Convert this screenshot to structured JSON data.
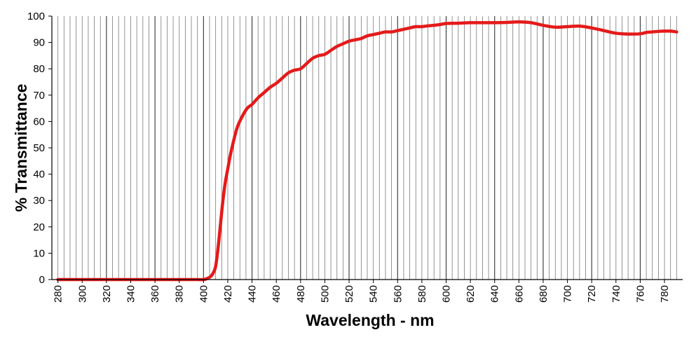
{
  "chart_data": {
    "type": "line",
    "title": "",
    "xlabel": "Wavelength - nm",
    "ylabel": "% Transmittance",
    "xlim": [
      275,
      795
    ],
    "ylim": [
      0,
      100
    ],
    "x_ticks": [
      280,
      300,
      320,
      340,
      360,
      380,
      400,
      420,
      440,
      460,
      480,
      500,
      520,
      540,
      560,
      580,
      600,
      620,
      640,
      660,
      680,
      700,
      720,
      740,
      760,
      780
    ],
    "y_ticks": [
      0,
      10,
      20,
      30,
      40,
      50,
      60,
      70,
      80,
      90,
      100
    ],
    "grid": "vertical lines every 5 nm, darker every 40 nm",
    "legend": "none",
    "series": [
      {
        "color": "#e51a1a",
        "x": [
          280,
          300,
          320,
          340,
          360,
          380,
          392,
          400,
          403,
          406,
          408,
          410,
          412,
          414,
          416,
          418,
          420,
          422,
          425,
          428,
          432,
          436,
          440,
          445,
          450,
          455,
          460,
          465,
          470,
          475,
          480,
          485,
          490,
          495,
          500,
          505,
          510,
          515,
          520,
          525,
          530,
          535,
          540,
          545,
          550,
          555,
          560,
          565,
          570,
          575,
          580,
          585,
          590,
          595,
          600,
          610,
          620,
          630,
          640,
          650,
          660,
          670,
          680,
          690,
          700,
          710,
          720,
          730,
          740,
          750,
          760,
          765,
          770,
          775,
          780,
          785,
          790
        ],
        "y": [
          0,
          0,
          0,
          0,
          0,
          0,
          0,
          0,
          0.4,
          1.2,
          2.5,
          5,
          12,
          21,
          30,
          37,
          42,
          47,
          53,
          58,
          62,
          65,
          66.5,
          69,
          71,
          73,
          74.5,
          76.5,
          78.5,
          79.5,
          80,
          82,
          84,
          85,
          85.5,
          87,
          88.5,
          89.5,
          90.5,
          91,
          91.5,
          92.5,
          93,
          93.5,
          94,
          94,
          94.5,
          95,
          95.5,
          96,
          96,
          96.3,
          96.5,
          96.8,
          97.2,
          97.3,
          97.5,
          97.5,
          97.5,
          97.6,
          97.8,
          97.5,
          96.5,
          95.8,
          96,
          96.2,
          95.5,
          94.5,
          93.5,
          93.2,
          93.3,
          93.8,
          94,
          94.2,
          94.3,
          94.3,
          94
        ]
      }
    ]
  }
}
